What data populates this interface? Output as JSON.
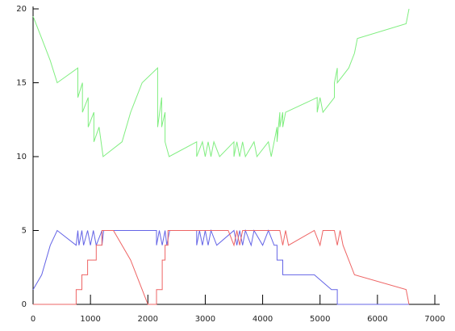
{
  "chart_data": {
    "type": "line",
    "xlim": [
      0,
      7000
    ],
    "xticks": [
      0,
      1000,
      2000,
      3000,
      4000,
      5000,
      6000,
      7000
    ],
    "ylim": [
      0,
      20
    ],
    "yticks": [
      0,
      5,
      10,
      15,
      20
    ],
    "series": [
      {
        "color": "#80ee80",
        "x": [
          0,
          150,
          300,
          420,
          780,
          780,
          860,
          860,
          960,
          960,
          1060,
          1060,
          1150,
          1220,
          1550,
          1700,
          1900,
          2170,
          2170,
          2240,
          2240,
          2300,
          2300,
          2370,
          2850,
          2850,
          2950,
          3000,
          3050,
          3100,
          3150,
          3250,
          3500,
          3500,
          3550,
          3600,
          3650,
          3700,
          3850,
          3900,
          4100,
          4150,
          4250,
          4250,
          4300,
          4300,
          4350,
          4350,
          4400,
          4950,
          4950,
          5000,
          5050,
          5250,
          5250,
          5300,
          5300,
          5500,
          5600,
          5650,
          6500,
          6550
        ],
        "values": [
          19.5,
          18,
          16.5,
          15,
          16,
          14,
          15,
          13,
          14,
          12,
          13,
          11,
          12,
          10,
          11,
          13,
          15,
          16,
          12,
          14,
          12,
          13,
          11,
          10,
          11,
          10,
          11,
          10,
          11,
          10,
          11,
          10,
          11,
          10,
          11,
          10,
          11,
          10,
          11,
          10,
          11,
          10,
          12,
          11,
          13,
          12,
          13,
          12,
          13,
          14,
          13,
          14,
          13,
          14,
          15,
          16,
          15,
          16,
          17,
          18,
          19,
          20
        ]
      },
      {
        "color": "#6464e6",
        "x": [
          0,
          150,
          300,
          420,
          750,
          780,
          800,
          850,
          880,
          950,
          1000,
          1050,
          1100,
          1200,
          1200,
          1230,
          2150,
          2150,
          2200,
          2250,
          2300,
          2330,
          2380,
          2850,
          2850,
          2900,
          2950,
          3000,
          3050,
          3100,
          3200,
          3500,
          3550,
          3600,
          3650,
          3700,
          3800,
          3850,
          4000,
          4100,
          4200,
          4250,
          4250,
          4350,
          4350,
          4900,
          5200,
          5300,
          5300,
          6550
        ],
        "values": [
          1,
          2,
          4,
          5,
          4,
          5,
          4,
          5,
          4,
          5,
          4,
          5,
          4,
          5,
          4,
          5,
          5,
          4,
          5,
          4,
          5,
          4,
          5,
          5,
          4,
          5,
          4,
          5,
          4,
          5,
          4,
          5,
          4,
          5,
          4,
          5,
          4,
          5,
          4,
          5,
          4,
          4,
          3,
          3,
          2,
          2,
          1,
          1,
          0,
          0
        ]
      },
      {
        "color": "#ee6464",
        "x": [
          0,
          750,
          750,
          850,
          850,
          950,
          950,
          1100,
          1100,
          1200,
          1200,
          1400,
          1700,
          1900,
          2000,
          2150,
          2150,
          2250,
          2250,
          2300,
          2300,
          2350,
          2350,
          3400,
          3500,
          3550,
          3600,
          3650,
          4300,
          4350,
          4400,
          4450,
          4900,
          5000,
          5050,
          5250,
          5300,
          5350,
          5400,
          5600,
          6500,
          6550
        ],
        "values": [
          0,
          0,
          1,
          1,
          2,
          2,
          3,
          3,
          4,
          4,
          5,
          5,
          3,
          1,
          0,
          0,
          1,
          1,
          3,
          3,
          4,
          4,
          5,
          5,
          4,
          5,
          4,
          5,
          5,
          4,
          5,
          4,
          5,
          4,
          5,
          5,
          4,
          5,
          4,
          2,
          1,
          0
        ]
      }
    ]
  }
}
